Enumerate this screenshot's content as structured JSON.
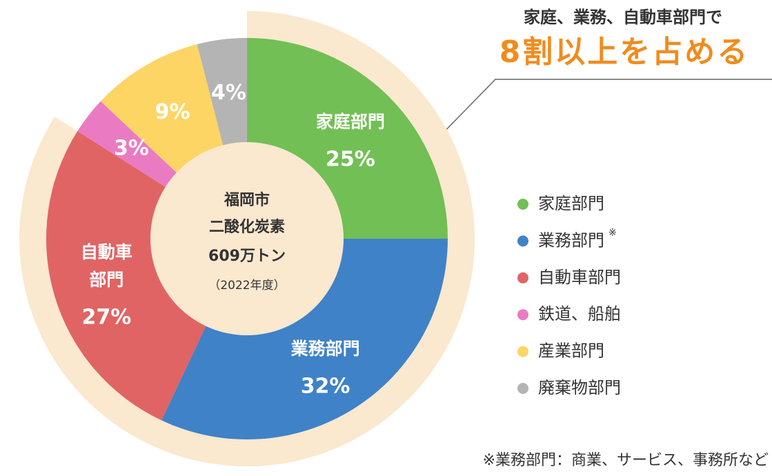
{
  "chart_data": {
    "type": "donut",
    "categories": [
      "家庭部門",
      "業務部門",
      "自動車部門",
      "鉄道、船舶",
      "産業部門",
      "廃棄物部門"
    ],
    "values": [
      25,
      32,
      27,
      3,
      9,
      4
    ],
    "value_labels": [
      "25%",
      "32%",
      "27%",
      "3%",
      "9%",
      "4%"
    ],
    "colors": [
      "#72bf55",
      "#3f82c7",
      "#e06464",
      "#ea7bc2",
      "#fdd565",
      "#b4b4b4"
    ],
    "slice_labels": [
      [
        "家庭部門"
      ],
      [
        "業務部門"
      ],
      [
        "自動車",
        "部門"
      ],
      null,
      null,
      null
    ],
    "legend_suffixes": [
      null,
      "※",
      null,
      null,
      null,
      null
    ],
    "highlight": [
      0,
      1,
      2
    ],
    "center_text": [
      "福岡市",
      "二酸化炭素",
      "609万トン",
      "（2022年度）"
    ],
    "callout": [
      "家庭、業務、自動車部門で",
      "8割以上を占める"
    ],
    "footnote": "※業務部門：商業、サービス、事務所など"
  }
}
